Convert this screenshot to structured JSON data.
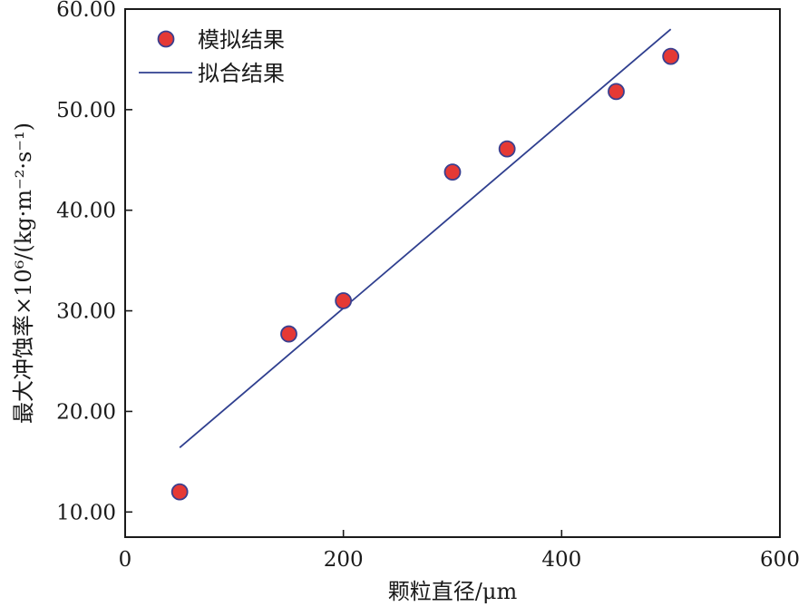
{
  "chart_data": {
    "type": "scatter",
    "xlabel": "颗粒直径/μm",
    "ylabel": "最大冲蚀率×10⁶/(kg·m⁻²·s⁻¹)",
    "xlim": [
      0,
      600
    ],
    "ylim": [
      7.5,
      60
    ],
    "x_ticks": [
      "0",
      "200",
      "400",
      "600"
    ],
    "y_ticks": [
      "10.00",
      "20.00",
      "30.00",
      "40.00",
      "50.00",
      "60.00"
    ],
    "grid": false,
    "legend_position": "top-left",
    "series": [
      {
        "name": "模拟结果",
        "kind": "scatter",
        "color": "#e53935",
        "edge_color": "#3a3f8f",
        "x": [
          50,
          150,
          200,
          300,
          350,
          450,
          500
        ],
        "y": [
          12.0,
          27.7,
          31.0,
          43.8,
          46.1,
          51.8,
          55.3
        ]
      },
      {
        "name": "拟合结果",
        "kind": "line",
        "color": "#2f3f8f",
        "x": [
          50,
          500
        ],
        "y": [
          16.4,
          58.0
        ]
      }
    ]
  }
}
